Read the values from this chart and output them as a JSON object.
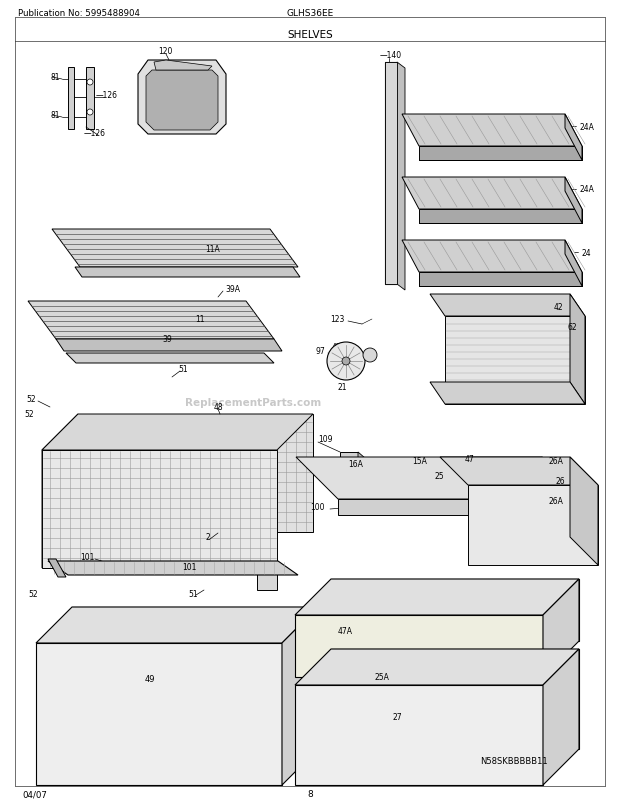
{
  "title": "SHELVES",
  "model": "GLHS36EE",
  "pub_no": "Publication No: 5995488904",
  "date": "04/07",
  "page": "8",
  "watermark": "ReplacementParts.com",
  "copyright_id": "N58SKBBBBB11",
  "bg": "#ffffff",
  "fig_width": 6.2,
  "fig_height": 8.03,
  "dpi": 100
}
